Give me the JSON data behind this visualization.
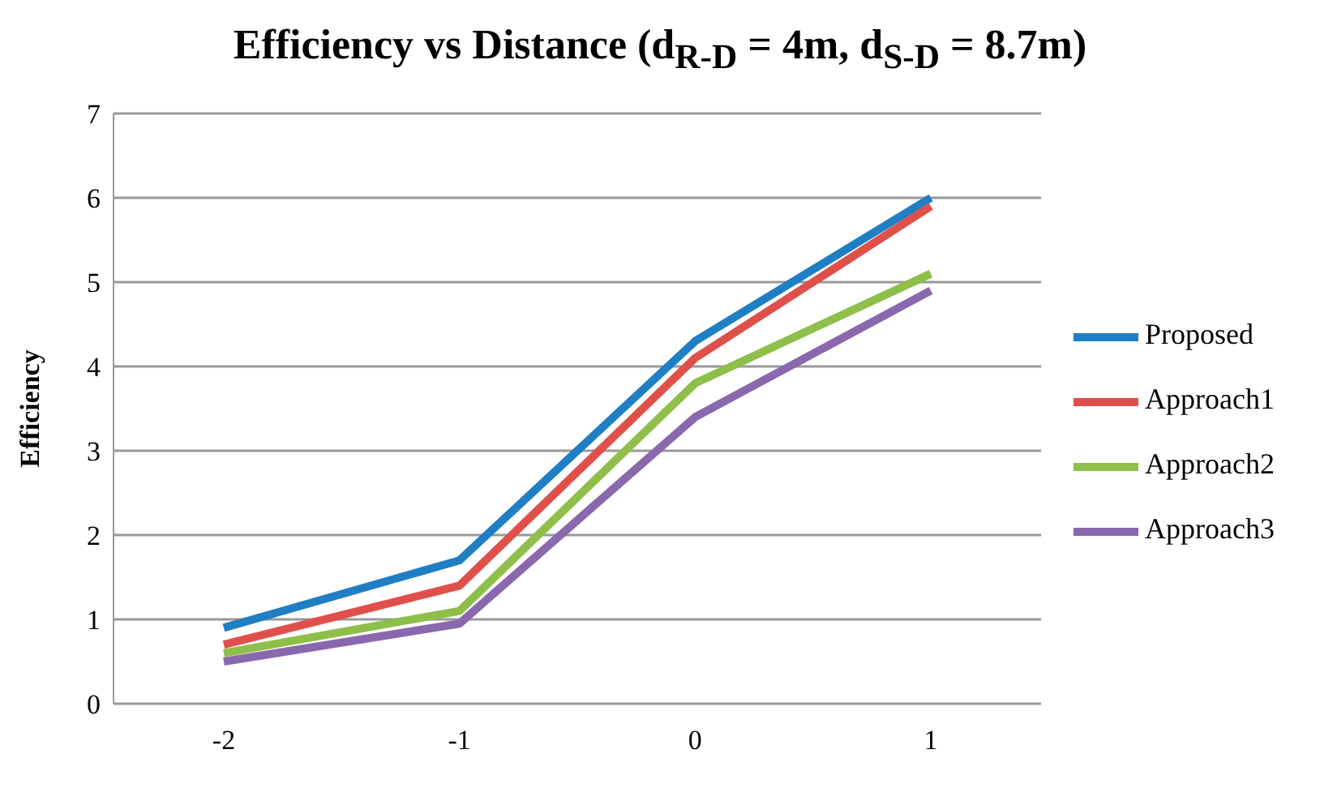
{
  "chart_data": {
    "type": "line",
    "title": "Efficiency vs Distance (d$_{R-D}$ = 4m, d$_{S-D}$ = 8.7m)",
    "ylabel": "Efficiency",
    "categories": [
      "-2",
      "-1",
      "0",
      "1"
    ],
    "series": [
      {
        "name": "Proposed",
        "color": "#1f7fc4",
        "values": [
          0.9,
          1.7,
          4.3,
          6.0
        ]
      },
      {
        "name": "Approach1",
        "color": "#e0504a",
        "values": [
          0.7,
          1.4,
          4.1,
          5.9
        ]
      },
      {
        "name": "Approach2",
        "color": "#8dbf4a",
        "values": [
          0.6,
          1.1,
          3.8,
          5.1
        ]
      },
      {
        "name": "Approach3",
        "color": "#8a68ae",
        "values": [
          0.5,
          0.95,
          3.4,
          4.9
        ]
      }
    ],
    "ylim": [
      0,
      7
    ],
    "yticks": [
      0,
      1,
      2,
      3,
      4,
      5,
      6,
      7
    ],
    "grid": "y",
    "legend": "right",
    "marker": "none",
    "line_style": "solid"
  }
}
